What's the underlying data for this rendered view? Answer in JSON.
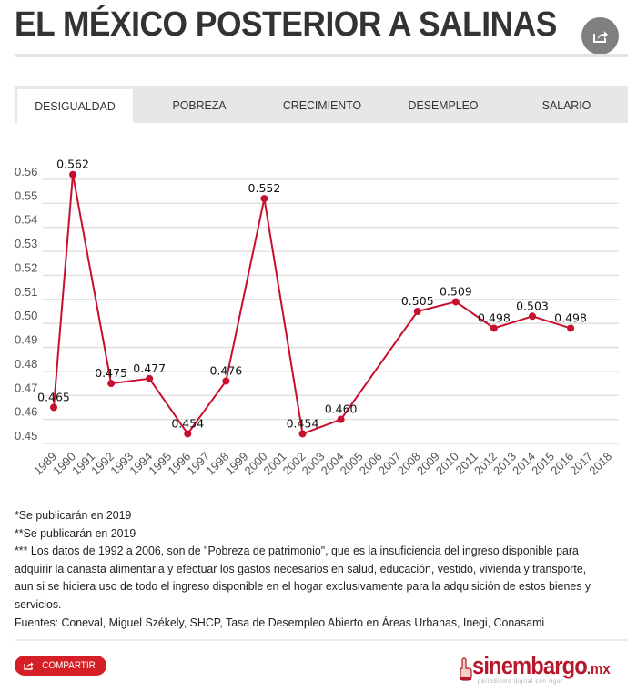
{
  "header": {
    "title": "EL MÉXICO POSTERIOR A SALINAS",
    "share_icon": "share-icon"
  },
  "tabs": [
    {
      "label": "DESIGUALDAD",
      "active": true
    },
    {
      "label": "POBREZA",
      "active": false
    },
    {
      "label": "CRECIMIENTO",
      "active": false
    },
    {
      "label": "DESEMPLEO",
      "active": false
    },
    {
      "label": "SALARIO",
      "active": false
    }
  ],
  "colors": {
    "series": "#c8102e",
    "accent": "#d41f26",
    "grid": "#dddddd",
    "tab_bg": "#e7e7e7"
  },
  "chart_data": {
    "type": "line",
    "title": "",
    "xlabel": "",
    "ylabel": "",
    "grid": true,
    "ylim": [
      0.45,
      0.56
    ],
    "yticks": [
      "0.45",
      "0.46",
      "0.47",
      "0.48",
      "0.49",
      "0.50",
      "0.51",
      "0.52",
      "0.53",
      "0.54",
      "0.55",
      "0.56"
    ],
    "categories": [
      "1989",
      "1990",
      "1991",
      "1992",
      "1993",
      "1994",
      "1995",
      "1996",
      "1997",
      "1998",
      "1999",
      "2000",
      "2001",
      "2002",
      "2003",
      "2004",
      "2005",
      "2006",
      "2007",
      "2008",
      "2009",
      "2010",
      "2011",
      "2012",
      "2013",
      "2014",
      "2015",
      "2016",
      "2017",
      "2018"
    ],
    "series": [
      {
        "name": "Desigualdad",
        "points": [
          {
            "x": "1989",
            "y": 0.465,
            "label": "0.465"
          },
          {
            "x": "1990",
            "y": 0.562,
            "label": "0.562"
          },
          {
            "x": "1992",
            "y": 0.475,
            "label": "0.475"
          },
          {
            "x": "1994",
            "y": 0.477,
            "label": "0.477"
          },
          {
            "x": "1996",
            "y": 0.454,
            "label": "0.454"
          },
          {
            "x": "1998",
            "y": 0.476,
            "label": "0.476"
          },
          {
            "x": "2000",
            "y": 0.552,
            "label": "0.552"
          },
          {
            "x": "2002",
            "y": 0.454,
            "label": "0.454"
          },
          {
            "x": "2004",
            "y": 0.46,
            "label": "0.460"
          },
          {
            "x": "2008",
            "y": 0.505,
            "label": "0.505"
          },
          {
            "x": "2010",
            "y": 0.509,
            "label": "0.509"
          },
          {
            "x": "2012",
            "y": 0.498,
            "label": "0.498"
          },
          {
            "x": "2014",
            "y": 0.503,
            "label": "0.503"
          },
          {
            "x": "2016",
            "y": 0.498,
            "label": "0.498"
          }
        ]
      }
    ]
  },
  "notes": [
    "*Se publicarán en 2019",
    "**Se publicarán en 2019",
    "*** Los datos de 1992 a 2006, son de  \"Pobreza de patrimonio\", que es la insuficiencia del ingreso disponible para adquirir la canasta alimentaria y efectuar los gastos necesarios en salud, educación, vestido, vivienda y transporte, aun si se hiciera uso de todo el ingreso disponible en el hogar exclusivamente para la adquisición de estos bienes y servicios.",
    "Fuentes: Coneval, Miguel Székely, SHCP, Tasa de Desempleo Abierto en Áreas Urbanas, Inegi, Conasami"
  ],
  "footer": {
    "share_button": "COMPARTIR",
    "logo_main": "sinembargo",
    "logo_suffix": ".mx",
    "logo_tagline": "periodismo digital con rigor"
  }
}
